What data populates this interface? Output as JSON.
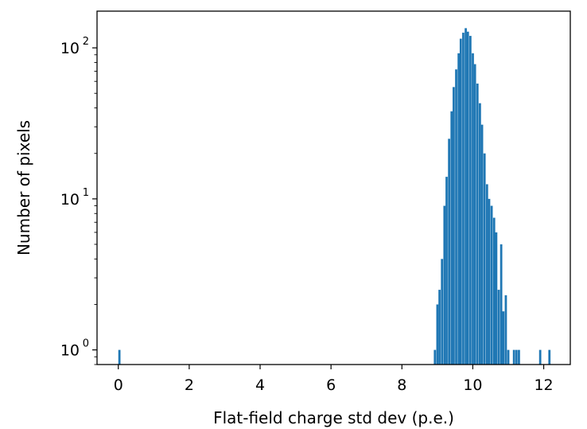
{
  "chart_data": {
    "type": "bar",
    "title": "",
    "xlabel": "Flat-field charge std dev (p.e.)",
    "ylabel": "Number of pixels",
    "xlim": [
      -0.6,
      12.75
    ],
    "ylim": [
      0.8,
      175
    ],
    "yscale": "log",
    "grid": false,
    "bar_color": "#1f77b4",
    "x_ticks": [
      0,
      2,
      4,
      6,
      8,
      10,
      12
    ],
    "x_tick_labels": [
      "0",
      "2",
      "4",
      "6",
      "8",
      "10",
      "12"
    ],
    "y_ticks": [
      1,
      10,
      100
    ],
    "y_tick_labels": [
      {
        "base": "10",
        "exp": "0"
      },
      {
        "base": "10",
        "exp": "1"
      },
      {
        "base": "10",
        "exp": "2"
      }
    ],
    "bin_width": 0.0667,
    "bins": [
      {
        "x": 0.0,
        "count": 1
      },
      {
        "x": 8.9,
        "count": 1
      },
      {
        "x": 8.97,
        "count": 2
      },
      {
        "x": 9.03,
        "count": 2.5
      },
      {
        "x": 9.1,
        "count": 4
      },
      {
        "x": 9.17,
        "count": 9
      },
      {
        "x": 9.23,
        "count": 14
      },
      {
        "x": 9.3,
        "count": 25
      },
      {
        "x": 9.37,
        "count": 38
      },
      {
        "x": 9.43,
        "count": 55
      },
      {
        "x": 9.5,
        "count": 72
      },
      {
        "x": 9.57,
        "count": 92
      },
      {
        "x": 9.63,
        "count": 115
      },
      {
        "x": 9.7,
        "count": 126
      },
      {
        "x": 9.77,
        "count": 135
      },
      {
        "x": 9.83,
        "count": 128
      },
      {
        "x": 9.9,
        "count": 120
      },
      {
        "x": 9.97,
        "count": 92
      },
      {
        "x": 10.03,
        "count": 78
      },
      {
        "x": 10.1,
        "count": 58
      },
      {
        "x": 10.17,
        "count": 43
      },
      {
        "x": 10.23,
        "count": 31
      },
      {
        "x": 10.3,
        "count": 20
      },
      {
        "x": 10.37,
        "count": 12.5
      },
      {
        "x": 10.43,
        "count": 10
      },
      {
        "x": 10.5,
        "count": 9
      },
      {
        "x": 10.57,
        "count": 7.5
      },
      {
        "x": 10.63,
        "count": 6
      },
      {
        "x": 10.7,
        "count": 2.5
      },
      {
        "x": 10.77,
        "count": 5
      },
      {
        "x": 10.83,
        "count": 1.8
      },
      {
        "x": 10.9,
        "count": 2.3
      },
      {
        "x": 10.97,
        "count": 1
      },
      {
        "x": 11.13,
        "count": 1
      },
      {
        "x": 11.2,
        "count": 1
      },
      {
        "x": 11.27,
        "count": 1
      },
      {
        "x": 11.87,
        "count": 1
      },
      {
        "x": 12.13,
        "count": 1
      }
    ]
  }
}
